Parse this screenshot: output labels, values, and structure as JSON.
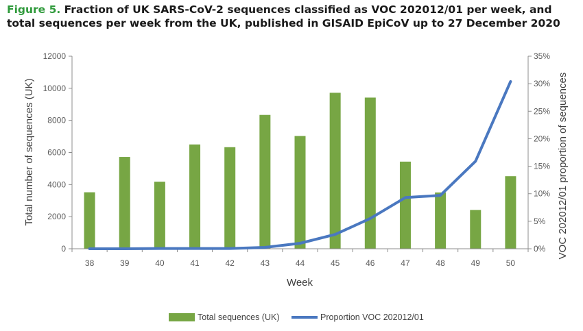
{
  "figure": {
    "label": "Figure 5.",
    "title": "Fraction of UK SARS-CoV-2 sequences classified as VOC 202012/01 per week, and total sequences per week from the UK, published in GISAID EpiCoV up to 27 December 2020"
  },
  "colors": {
    "bar": "#77a644",
    "line": "#4a78c0",
    "axis": "#8c8c8c",
    "text": "#404040"
  },
  "chart_data": {
    "type": "bar",
    "categories": [
      "38",
      "39",
      "40",
      "41",
      "42",
      "43",
      "44",
      "45",
      "46",
      "47",
      "48",
      "49",
      "50"
    ],
    "series": [
      {
        "name": "Total sequences (UK)",
        "type": "bar",
        "axis": "left",
        "values": [
          3520,
          5720,
          4180,
          6500,
          6330,
          8340,
          7030,
          9720,
          9420,
          5430,
          3510,
          2420,
          4520
        ]
      },
      {
        "name": "Proportion VOC 202012/01",
        "type": "line",
        "axis": "right",
        "values": [
          0.0,
          0.0,
          0.0005,
          0.0005,
          0.0005,
          0.0025,
          0.01,
          0.026,
          0.055,
          0.093,
          0.097,
          0.159,
          0.304
        ]
      }
    ],
    "xlabel": "Week",
    "ylabel_left": "Total number of sequences (UK)",
    "ylabel_right": "VOC 202012/01 proportion of sequences",
    "ylim_left": [
      0,
      12000
    ],
    "yticks_left": [
      "0",
      "2000",
      "4000",
      "6000",
      "8000",
      "10000",
      "12000"
    ],
    "ylim_right": [
      0,
      0.35
    ],
    "yticks_right": [
      "0%",
      "5%",
      "10%",
      "15%",
      "20%",
      "25%",
      "30%",
      "35%"
    ],
    "grid": false,
    "legend_position": "bottom"
  }
}
